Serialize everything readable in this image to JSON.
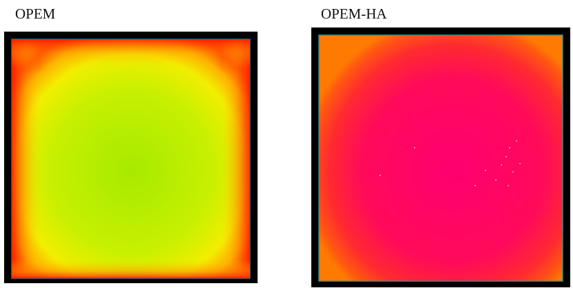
{
  "panels": [
    {
      "label": "OPEM"
    },
    {
      "label": "OPEM-HA"
    }
  ]
}
